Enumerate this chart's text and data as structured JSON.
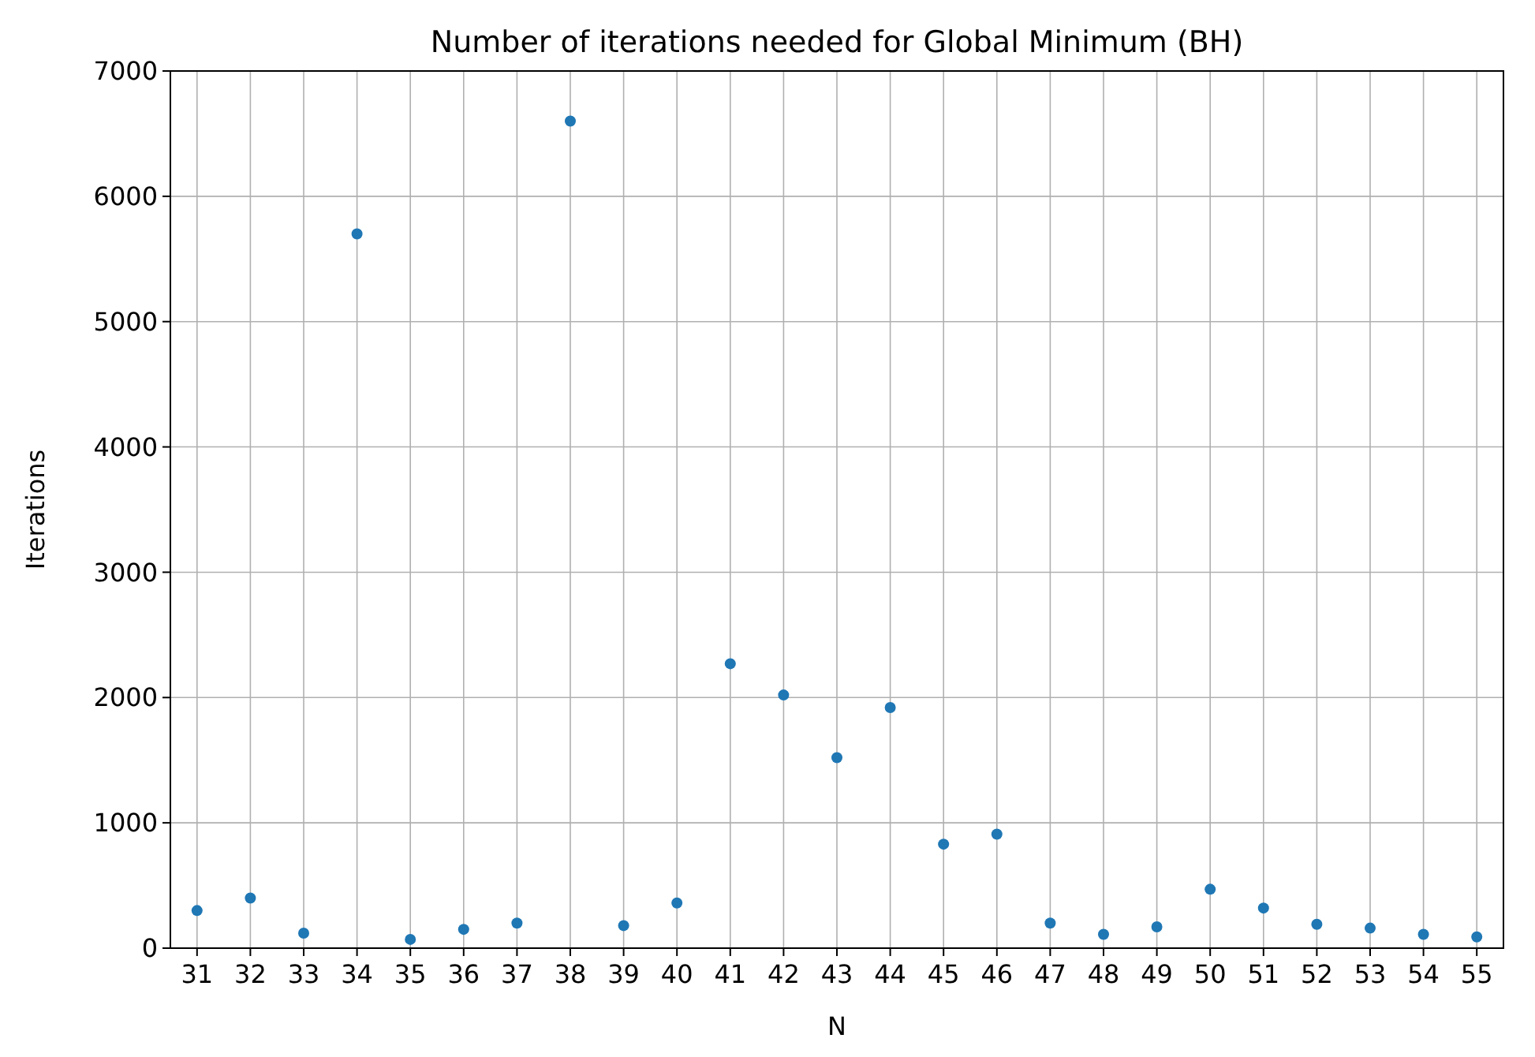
{
  "chart_data": {
    "type": "scatter",
    "title": "Number of iterations needed for Global Minimum (BH)",
    "xlabel": "N",
    "ylabel": "Iterations",
    "x": [
      31,
      32,
      33,
      34,
      35,
      36,
      37,
      38,
      39,
      40,
      41,
      42,
      43,
      44,
      45,
      46,
      47,
      48,
      49,
      50,
      51,
      52,
      53,
      54,
      55
    ],
    "series": [
      {
        "color": "#1f77b4",
        "values": [
          300,
          400,
          120,
          5700,
          70,
          150,
          200,
          6600,
          180,
          360,
          2270,
          2020,
          1520,
          1920,
          830,
          910,
          200,
          110,
          170,
          470,
          320,
          190,
          160,
          110,
          90
        ]
      }
    ],
    "xlim": [
      30.5,
      55.5
    ],
    "xticks": [
      31,
      32,
      33,
      34,
      35,
      36,
      37,
      38,
      39,
      40,
      41,
      42,
      43,
      44,
      45,
      46,
      47,
      48,
      49,
      50,
      51,
      52,
      53,
      54,
      55
    ],
    "ylim": [
      0,
      7000
    ],
    "yticks": [
      0,
      1000,
      2000,
      3000,
      4000,
      5000,
      6000,
      7000
    ],
    "grid": true,
    "marker": "circle"
  }
}
